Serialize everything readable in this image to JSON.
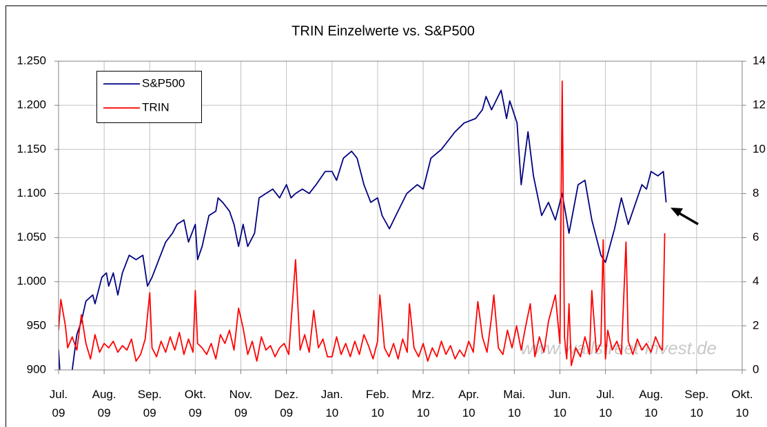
{
  "chart_data": {
    "type": "line",
    "title": "TRIN Einzelwerte vs. S&P500",
    "annotation": "www.wallstreet-invest.de",
    "legend": "top-left",
    "grid": true,
    "xlim": [
      0,
      15
    ],
    "xticks": [
      {
        "value": 0,
        "label": "Jul.\n09"
      },
      {
        "value": 1,
        "label": "Aug.\n09"
      },
      {
        "value": 2,
        "label": "Sep.\n09"
      },
      {
        "value": 3,
        "label": "Okt.\n09"
      },
      {
        "value": 4,
        "label": "Nov.\n09"
      },
      {
        "value": 5,
        "label": "Dez.\n09"
      },
      {
        "value": 6,
        "label": "Jan.\n10"
      },
      {
        "value": 7,
        "label": "Feb.\n10"
      },
      {
        "value": 8,
        "label": "Mrz.\n10"
      },
      {
        "value": 9,
        "label": "Apr.\n10"
      },
      {
        "value": 10,
        "label": "Mai.\n10"
      },
      {
        "value": 11,
        "label": "Jun.\n10"
      },
      {
        "value": 12,
        "label": "Jul.\n10"
      },
      {
        "value": 13,
        "label": "Aug.\n10"
      },
      {
        "value": 14,
        "label": "Sep.\n10"
      },
      {
        "value": 15,
        "label": "Okt.\n10"
      }
    ],
    "ylim": [
      900,
      1250
    ],
    "yticks": [
      900,
      950,
      {
        "value": 1000,
        "label": "1.000"
      },
      {
        "value": 1050,
        "label": "1.050"
      },
      {
        "value": 1100,
        "label": "1.100"
      },
      {
        "value": 1150,
        "label": "1.150"
      },
      {
        "value": 1200,
        "label": "1.200"
      },
      {
        "value": 1250,
        "label": "1.250"
      }
    ],
    "y2lim": [
      0,
      14
    ],
    "y2ticks": [
      0,
      2,
      4,
      6,
      8,
      10,
      12,
      14
    ],
    "series": [
      {
        "name": "S&P500",
        "color": "#000080",
        "x": [
          0,
          0.05,
          0.15,
          0.3,
          0.4,
          0.5,
          0.6,
          0.75,
          0.8,
          0.95,
          1.05,
          1.1,
          1.2,
          1.3,
          1.4,
          1.55,
          1.7,
          1.85,
          1.95,
          2.05,
          2.2,
          2.35,
          2.5,
          2.6,
          2.75,
          2.85,
          3.0,
          3.05,
          3.15,
          3.3,
          3.45,
          3.5,
          3.6,
          3.75,
          3.85,
          3.95,
          4.05,
          4.15,
          4.3,
          4.4,
          4.55,
          4.7,
          4.85,
          5.0,
          5.1,
          5.2,
          5.35,
          5.5,
          5.65,
          5.85,
          6.0,
          6.1,
          6.25,
          6.43,
          6.55,
          6.7,
          6.85,
          7.0,
          7.1,
          7.26,
          7.4,
          7.64,
          7.87,
          8.0,
          8.17,
          8.4,
          8.55,
          8.7,
          8.9,
          9.15,
          9.3,
          9.38,
          9.5,
          9.71,
          9.83,
          9.9,
          10.06,
          10.15,
          10.3,
          10.42,
          10.6,
          10.75,
          10.9,
          11.05,
          11.2,
          11.4,
          11.55,
          11.7,
          11.9,
          12.0,
          12.2,
          12.35,
          12.5,
          12.6,
          12.8,
          12.9,
          13.0,
          13.15,
          13.27,
          13.33
        ],
        "values": [
          923,
          880,
          870,
          900,
          940,
          955,
          978,
          985,
          975,
          1005,
          1010,
          995,
          1010,
          985,
          1010,
          1030,
          1025,
          1030,
          995,
          1005,
          1025,
          1045,
          1055,
          1065,
          1070,
          1045,
          1065,
          1025,
          1040,
          1075,
          1080,
          1095,
          1090,
          1080,
          1065,
          1040,
          1065,
          1040,
          1055,
          1095,
          1100,
          1105,
          1095,
          1110,
          1095,
          1100,
          1105,
          1100,
          1110,
          1125,
          1125,
          1115,
          1140,
          1148,
          1140,
          1110,
          1090,
          1095,
          1075,
          1060,
          1075,
          1100,
          1110,
          1105,
          1140,
          1150,
          1160,
          1170,
          1180,
          1185,
          1195,
          1210,
          1195,
          1217,
          1185,
          1205,
          1180,
          1110,
          1170,
          1120,
          1075,
          1090,
          1070,
          1100,
          1055,
          1110,
          1115,
          1070,
          1030,
          1022,
          1060,
          1095,
          1065,
          1080,
          1110,
          1105,
          1125,
          1120,
          1125,
          1090
        ]
      },
      {
        "name": "TRIN",
        "color": "#ff0000",
        "axis": "y2",
        "x": [
          0,
          0.05,
          0.15,
          0.2,
          0.3,
          0.4,
          0.5,
          0.6,
          0.7,
          0.8,
          0.9,
          1.0,
          1.1,
          1.2,
          1.3,
          1.4,
          1.5,
          1.6,
          1.7,
          1.8,
          1.9,
          2.0,
          2.05,
          2.15,
          2.25,
          2.35,
          2.45,
          2.55,
          2.65,
          2.75,
          2.85,
          2.95,
          3.0,
          3.05,
          3.15,
          3.25,
          3.35,
          3.45,
          3.55,
          3.65,
          3.75,
          3.85,
          3.95,
          4.05,
          4.15,
          4.25,
          4.35,
          4.45,
          4.55,
          4.65,
          4.75,
          4.85,
          4.95,
          5.05,
          5.2,
          5.3,
          5.4,
          5.5,
          5.6,
          5.7,
          5.8,
          5.9,
          6.0,
          6.1,
          6.2,
          6.3,
          6.4,
          6.5,
          6.6,
          6.7,
          6.8,
          6.9,
          7.0,
          7.05,
          7.15,
          7.25,
          7.35,
          7.45,
          7.55,
          7.65,
          7.7,
          7.8,
          7.9,
          8.0,
          8.1,
          8.2,
          8.3,
          8.4,
          8.5,
          8.6,
          8.7,
          8.8,
          8.9,
          9.0,
          9.1,
          9.2,
          9.3,
          9.4,
          9.5,
          9.55,
          9.65,
          9.75,
          9.85,
          9.95,
          10.05,
          10.15,
          10.25,
          10.35,
          10.45,
          10.55,
          10.65,
          10.75,
          10.9,
          11.0,
          11.05,
          11.1,
          11.15,
          11.2,
          11.25,
          11.35,
          11.45,
          11.55,
          11.65,
          11.7,
          11.8,
          11.9,
          11.95,
          12.0,
          12.05,
          12.15,
          12.25,
          12.35,
          12.45,
          12.5,
          12.6,
          12.7,
          12.8,
          12.9,
          13.0,
          13.1,
          13.2,
          13.25,
          13.3
        ],
        "values": [
          1.8,
          3.2,
          2.0,
          1.0,
          1.5,
          0.9,
          2.5,
          1.2,
          0.5,
          1.6,
          0.8,
          1.2,
          1.0,
          1.3,
          0.8,
          1.1,
          0.9,
          1.4,
          0.4,
          0.7,
          1.4,
          3.5,
          1.0,
          0.6,
          1.3,
          0.8,
          1.5,
          0.9,
          1.7,
          0.7,
          1.4,
          0.8,
          3.6,
          1.2,
          1.0,
          0.7,
          1.2,
          0.5,
          1.6,
          1.2,
          1.8,
          0.9,
          2.8,
          1.9,
          0.7,
          1.3,
          0.4,
          1.5,
          0.9,
          1.1,
          0.6,
          1.0,
          1.2,
          0.7,
          5.0,
          0.9,
          1.6,
          0.8,
          2.7,
          1.0,
          1.4,
          0.6,
          0.6,
          1.5,
          0.7,
          1.2,
          0.6,
          1.3,
          0.7,
          1.6,
          1.1,
          0.5,
          1.3,
          3.4,
          1.0,
          0.6,
          1.2,
          0.5,
          1.4,
          0.8,
          3.0,
          1.0,
          0.6,
          1.2,
          0.4,
          1.0,
          0.6,
          1.3,
          0.7,
          1.1,
          0.5,
          0.9,
          0.6,
          1.3,
          0.8,
          3.1,
          1.5,
          0.8,
          2.4,
          3.4,
          1.0,
          0.7,
          1.8,
          1.0,
          2.0,
          0.9,
          2.0,
          3.0,
          0.6,
          1.5,
          0.8,
          2.2,
          3.4,
          1.2,
          13.1,
          1.5,
          0.5,
          3.0,
          0.2,
          1.0,
          0.6,
          1.5,
          0.7,
          3.6,
          0.8,
          1.2,
          5.9,
          0.5,
          1.8,
          0.9,
          1.3,
          0.7,
          5.8,
          1.3,
          0.7,
          1.4,
          0.9,
          1.2,
          0.8,
          1.5,
          1.0,
          0.9,
          6.2
        ]
      }
    ]
  }
}
